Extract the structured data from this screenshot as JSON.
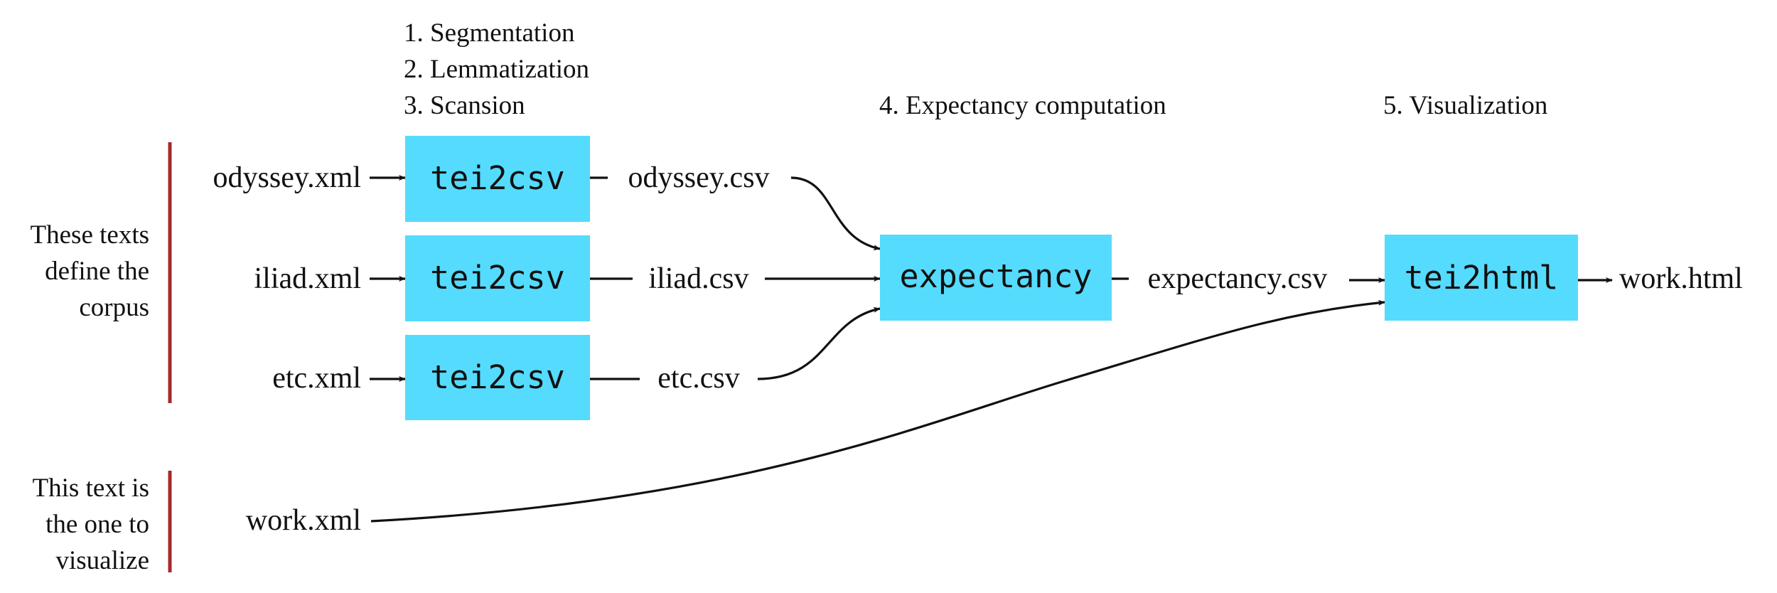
{
  "steps": {
    "s1": "1. Segmentation",
    "s2": "2. Lemmatization",
    "s3": "3. Scansion",
    "s4": "4. Expectancy computation",
    "s5": "5. Visualization"
  },
  "notes": {
    "corpus": [
      "These texts",
      "define the",
      "corpus"
    ],
    "target": [
      "This text is",
      "the one to",
      "visualize"
    ]
  },
  "inputs": {
    "odyssey": "odyssey.xml",
    "iliad": "iliad.xml",
    "etc": "etc.xml",
    "work": "work.xml"
  },
  "tools": {
    "tei2csv": "tei2csv",
    "expectancy": "expectancy",
    "tei2html": "tei2html"
  },
  "intermediates": {
    "odyssey": "odyssey.csv",
    "iliad": "iliad.csv",
    "etc": "etc.csv",
    "expectancy": "expectancy.csv"
  },
  "outputs": {
    "work": "work.html"
  },
  "colors": {
    "tool_fill": "#55dbfd",
    "bracket": "#a52a2a",
    "ink": "#111111"
  }
}
